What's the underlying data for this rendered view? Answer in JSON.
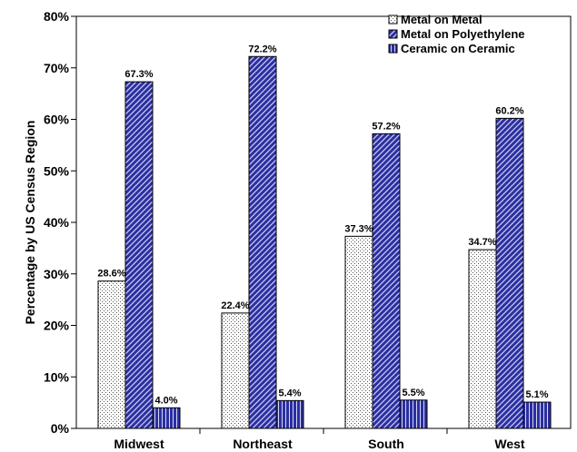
{
  "chart_data": {
    "type": "bar",
    "categories": [
      "Midwest",
      "Northeast",
      "South",
      "West"
    ],
    "series": [
      {
        "name": "Metal on Metal",
        "values": [
          28.6,
          22.4,
          37.3,
          34.7
        ],
        "labels": [
          "28.6%",
          "22.4%",
          "37.3%",
          "34.7%"
        ],
        "color": "#ffffff"
      },
      {
        "name": "Metal on Polyethylene",
        "values": [
          67.3,
          72.2,
          57.2,
          60.2
        ],
        "labels": [
          "67.3%",
          "72.2%",
          "57.2%",
          "60.2%"
        ],
        "color": "#2b2fa0"
      },
      {
        "name": "Ceramic on Ceramic",
        "values": [
          4.0,
          5.4,
          5.5,
          5.1
        ],
        "labels": [
          "4.0%",
          "5.4%",
          "5.5%",
          "5.1%"
        ],
        "color": "#2b2fa0"
      }
    ],
    "ylabel": "Percentage by US Census Region",
    "ylim": [
      0,
      80
    ],
    "yticks": [
      "0%",
      "10%",
      "20%",
      "30%",
      "40%",
      "50%",
      "60%",
      "70%",
      "80%"
    ],
    "legend_position": "top-right",
    "grid": false
  }
}
